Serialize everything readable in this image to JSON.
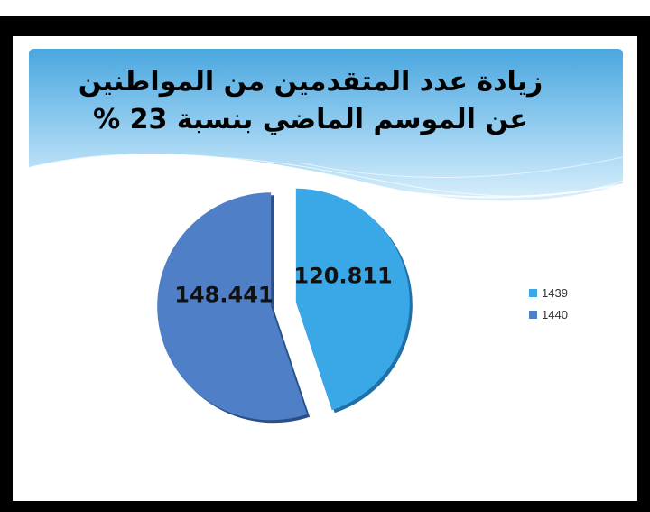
{
  "slide": {
    "title_line1": "زيادة عدد المتقدمين من المواطنين",
    "title_line2": "عن الموسم الماضي بنسبة 23 %"
  },
  "colors": {
    "series_1439": "#3aa8e6",
    "series_1440": "#4f7fc7"
  },
  "chart_data": {
    "type": "pie",
    "categories": [
      "1439",
      "1440"
    ],
    "values": [
      120.811,
      148.441
    ],
    "value_labels": [
      "120.811",
      "148.441"
    ],
    "legend": [
      "1439",
      "1440"
    ],
    "legend_position": "right",
    "exploded": true
  }
}
